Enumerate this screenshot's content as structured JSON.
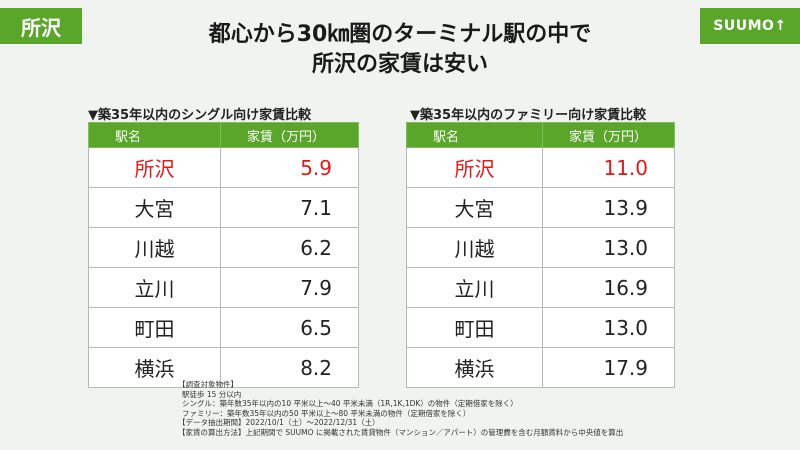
{
  "header": {
    "location_tag": "所沢",
    "brand": "SUUMO↑",
    "title_line1": "都心から30㎞圏のターミナル駅の中で",
    "title_line2": "所沢の家賃は安い"
  },
  "single_table": {
    "title": "▼築35年以内のシングル向け家賃比較",
    "col_station": "駅名",
    "col_rent": "家賃（万円）",
    "rows": [
      {
        "station": "所沢",
        "rent": "5.9"
      },
      {
        "station": "大宮",
        "rent": "7.1"
      },
      {
        "station": "川越",
        "rent": "6.2"
      },
      {
        "station": "立川",
        "rent": "7.9"
      },
      {
        "station": "町田",
        "rent": "6.5"
      },
      {
        "station": "横浜",
        "rent": "8.2"
      }
    ]
  },
  "family_table": {
    "title": "▼築35年以内のファミリー向け家賃比較",
    "col_station": "駅名",
    "col_rent": "家賃（万円）",
    "rows": [
      {
        "station": "所沢",
        "rent": "11.0"
      },
      {
        "station": "大宮",
        "rent": "13.9"
      },
      {
        "station": "川越",
        "rent": "13.0"
      },
      {
        "station": "立川",
        "rent": "16.9"
      },
      {
        "station": "町田",
        "rent": "13.0"
      },
      {
        "station": "横浜",
        "rent": "17.9"
      }
    ]
  },
  "colors": {
    "accent_green": "#5aa62a",
    "highlight_red": "#e01818"
  },
  "notes": [
    "【調査対象物件】",
    "駅徒歩 15 分以内",
    "シングル：築年数35年以内の10 平米以上～40 平米未満（1R,1K,1DK）の物件（定期借家を除く）",
    "ファミリー：築年数35年以内の50 平米以上～80 平米未満の物件（定期借家を除く）",
    "【データ抽出期間】2022/10/1（土）～2022/12/31（土）",
    "【家賃の算出方法】上記期間で SUUMO に掲載された賃貸物件（マンション／アパート）の管理費を含む月額賃料から中央値を算出"
  ]
}
